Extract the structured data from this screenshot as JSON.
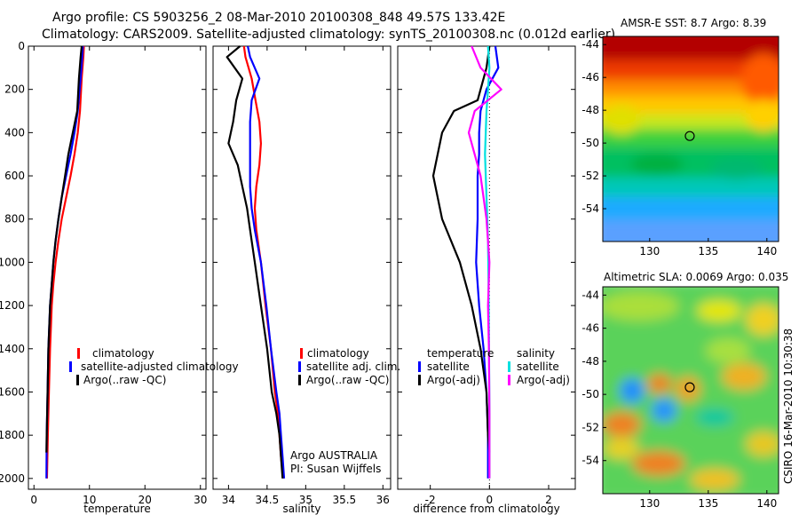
{
  "header": {
    "title_line1": "Argo profile: CS 5903256_2 08-Mar-2010 20100308_848 49.57S 133.42E",
    "title_line2": "Climatology: CARS2009. Satellite-adjusted climatology: synTS_20100308.nc (0.012d earlier)"
  },
  "side_stamp": "CSIRO 16-Mar-2010 10:30:38",
  "colors": {
    "climatology": "#ff0000",
    "satellite": "#0000ff",
    "argo": "#000000",
    "salinity_satellite": "#00e0e0",
    "salinity_argo": "#ff00ff"
  },
  "chart_data": [
    {
      "type": "line",
      "xlabel": "temperature",
      "ylabel": "",
      "xlim": [
        -1,
        31
      ],
      "ylim": [
        2050,
        0
      ],
      "xticks": [
        0,
        10,
        20,
        30
      ],
      "yticks": [
        0,
        200,
        400,
        600,
        800,
        1000,
        1200,
        1400,
        1600,
        1800,
        2000
      ],
      "legend": [
        "climatology",
        "satellite-adjusted climatology",
        "Argo(..raw -QC)"
      ],
      "series": [
        {
          "name": "climatology",
          "color": "#ff0000",
          "x": [
            9.0,
            8.9,
            8.6,
            8.3,
            7.9,
            7.3,
            6.6,
            5.8,
            5.0,
            4.4,
            3.9,
            3.5,
            3.2,
            2.9,
            2.7,
            2.5,
            2.35
          ],
          "y": [
            0,
            50,
            150,
            300,
            400,
            500,
            600,
            700,
            800,
            900,
            1000,
            1100,
            1200,
            1400,
            1600,
            1800,
            2000
          ]
        },
        {
          "name": "satellite-adjusted climatology",
          "color": "#0000ff",
          "x": [
            8.8,
            8.7,
            8.4,
            7.9,
            7.3,
            6.6,
            5.8,
            5.0,
            4.4,
            3.9,
            3.5,
            3.2,
            2.9,
            2.6,
            2.45,
            2.3,
            2.25
          ],
          "y": [
            0,
            50,
            150,
            300,
            400,
            500,
            600,
            700,
            800,
            900,
            1000,
            1100,
            1200,
            1400,
            1600,
            1800,
            2000
          ]
        },
        {
          "name": "Argo(..raw -QC)",
          "color": "#000000",
          "x": [
            8.6,
            8.4,
            8.1,
            7.8,
            7.0,
            6.2,
            5.6,
            5.0,
            4.4,
            3.9,
            3.5,
            3.2,
            2.9,
            2.6,
            2.45,
            2.3,
            2.25
          ],
          "y": [
            0,
            50,
            150,
            300,
            400,
            500,
            600,
            700,
            800,
            900,
            1000,
            1100,
            1200,
            1400,
            1600,
            1800,
            1880
          ]
        }
      ]
    },
    {
      "type": "line",
      "xlabel": "salinity",
      "ylabel": "",
      "xlim": [
        33.8,
        36.1
      ],
      "ylim": [
        2050,
        0
      ],
      "xticks": [
        34,
        34.5,
        35,
        35.5,
        36
      ],
      "yticks": [
        0,
        200,
        400,
        600,
        800,
        1000,
        1200,
        1400,
        1600,
        1800,
        2000
      ],
      "legend": [
        "climatology",
        "satellite adj. clim.",
        "Argo(..raw -QC)"
      ],
      "annotation": [
        "Argo AUSTRALIA",
        "PI: Susan Wijffels"
      ],
      "series": [
        {
          "name": "climatology",
          "color": "#ff0000",
          "x": [
            34.2,
            34.22,
            34.3,
            34.35,
            34.4,
            34.42,
            34.4,
            34.36,
            34.34,
            34.36,
            34.42,
            34.48,
            34.55,
            34.6,
            34.64,
            34.66,
            34.68,
            34.71
          ],
          "y": [
            0,
            50,
            150,
            250,
            350,
            450,
            550,
            650,
            750,
            850,
            1000,
            1200,
            1400,
            1600,
            1700,
            1800,
            1900,
            2000
          ]
        },
        {
          "name": "satellite adj. clim.",
          "color": "#0000ff",
          "x": [
            34.25,
            34.28,
            34.4,
            34.3,
            34.28,
            34.28,
            34.28,
            34.28,
            34.3,
            34.34,
            34.42,
            34.49,
            34.55,
            34.62,
            34.66,
            34.68,
            34.7,
            34.72
          ],
          "y": [
            0,
            50,
            150,
            250,
            350,
            450,
            550,
            650,
            750,
            850,
            1000,
            1200,
            1400,
            1600,
            1700,
            1800,
            1900,
            2000
          ]
        },
        {
          "name": "Argo(..raw -QC)",
          "color": "#000000",
          "x": [
            34.15,
            33.98,
            34.18,
            34.1,
            34.06,
            34.0,
            34.12,
            34.18,
            34.24,
            34.28,
            34.34,
            34.42,
            34.5,
            34.56,
            34.62,
            34.66,
            34.68,
            34.7
          ],
          "y": [
            0,
            50,
            150,
            250,
            350,
            450,
            550,
            650,
            750,
            850,
            1000,
            1200,
            1400,
            1600,
            1700,
            1800,
            1900,
            2000
          ]
        }
      ]
    },
    {
      "type": "line",
      "xlabel": "difference from climatology",
      "ylabel": "",
      "xlim": [
        -3.1,
        2.9
      ],
      "ylim": [
        2050,
        0
      ],
      "xticks": [
        -2,
        0,
        2
      ],
      "yticks": [
        0,
        200,
        400,
        600,
        800,
        1000,
        1200,
        1400,
        1600,
        1800,
        2000
      ],
      "legend_temperature_header": "temperature",
      "legend_salinity_header": "salinity",
      "legend_temperature": [
        "satellite",
        "Argo(-adj)"
      ],
      "legend_salinity": [
        "satellite",
        "Argo(-adj)"
      ],
      "series": [
        {
          "name": "temperature satellite",
          "color": "#0000ff",
          "x": [
            0.2,
            0.3,
            -0.1,
            -0.3,
            -0.35,
            -0.35,
            -0.4,
            -0.4,
            -0.45,
            -0.35,
            -0.2,
            -0.1,
            -0.05,
            -0.05
          ],
          "y": [
            0,
            100,
            200,
            300,
            400,
            500,
            600,
            800,
            1000,
            1200,
            1400,
            1600,
            1800,
            2000
          ]
        },
        {
          "name": "temperature Argo(-adj)",
          "color": "#000000",
          "x": [
            0.0,
            -0.1,
            -0.4,
            -1.2,
            -1.6,
            -1.9,
            -1.6,
            -1.0,
            -0.6,
            -0.3,
            -0.1,
            -0.05,
            0.0
          ],
          "y": [
            0,
            100,
            250,
            300,
            400,
            600,
            800,
            1000,
            1200,
            1400,
            1600,
            1800,
            1880
          ]
        },
        {
          "name": "salinity satellite",
          "color": "#00e0e0",
          "x": [
            -0.05,
            0.0,
            -0.05,
            -0.1,
            -0.15,
            -0.1,
            -0.05,
            -0.03,
            -0.02,
            -0.01,
            0.0,
            0.0
          ],
          "y": [
            0,
            100,
            200,
            300,
            500,
            700,
            900,
            1100,
            1300,
            1500,
            1700,
            2000
          ]
        },
        {
          "name": "salinity Argo(-adj)",
          "color": "#ff00ff",
          "x": [
            -0.6,
            -0.3,
            0.4,
            -0.5,
            -0.7,
            -0.3,
            -0.1,
            0.0,
            -0.05,
            -0.02,
            0.0,
            0.0
          ],
          "y": [
            0,
            100,
            200,
            300,
            400,
            600,
            800,
            1000,
            1200,
            1400,
            1700,
            2000
          ]
        }
      ]
    },
    {
      "type": "heatmap",
      "title": "AMSR-E SST: 8.7 Argo: 8.39",
      "xlim": [
        126,
        141
      ],
      "ylim": [
        -56,
        -43.5
      ],
      "xticks": [
        130,
        135,
        140
      ],
      "yticks": [
        -44,
        -46,
        -48,
        -50,
        -52,
        -54
      ],
      "marker": {
        "x": 133.42,
        "y": -49.57
      }
    },
    {
      "type": "heatmap",
      "title": "Altimetric SLA: 0.0069 Argo: 0.035",
      "xlim": [
        126,
        141
      ],
      "ylim": [
        -56,
        -43.5
      ],
      "xticks": [
        130,
        135,
        140
      ],
      "yticks": [
        -44,
        -46,
        -48,
        -50,
        -52,
        -54
      ],
      "marker": {
        "x": 133.42,
        "y": -49.57
      }
    }
  ]
}
